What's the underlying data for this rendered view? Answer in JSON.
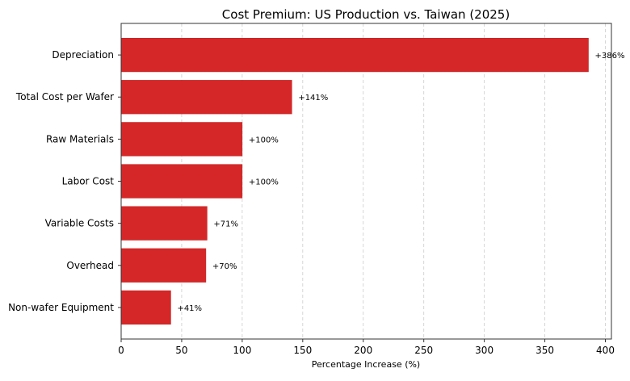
{
  "chart_data": {
    "type": "bar",
    "orientation": "horizontal",
    "title": "Cost Premium: US Production vs. Taiwan (2025)",
    "xlabel": "Percentage Increase (%)",
    "ylabel": "",
    "categories": [
      "Depreciation",
      "Total Cost per Wafer",
      "Raw Materials",
      "Labor Cost",
      "Variable Costs",
      "Overhead",
      "Non-wafer Equipment"
    ],
    "values": [
      386,
      141,
      100,
      100,
      71,
      70,
      41
    ],
    "data_labels": [
      "+386%",
      "+141%",
      "+100%",
      "+100%",
      "+71%",
      "+70%",
      "+41%"
    ],
    "xlim": [
      0,
      405
    ],
    "xticks": [
      0,
      50,
      100,
      150,
      200,
      250,
      300,
      350,
      400
    ],
    "grid": "x-dashed",
    "bar_color": "#d62728"
  }
}
